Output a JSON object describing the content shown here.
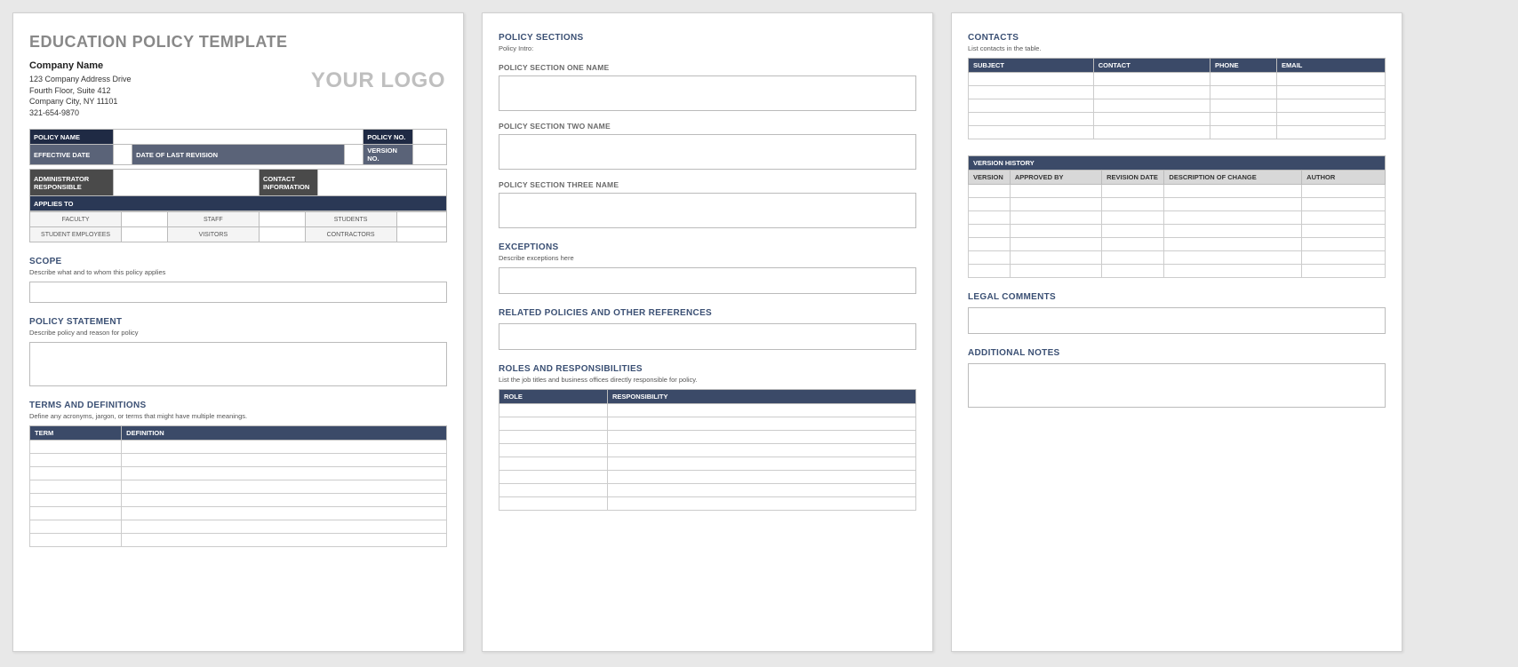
{
  "colors": {
    "page_bg": "#ffffff",
    "body_bg": "#e8e8e8",
    "title_gray": "#888888",
    "heading_navy": "#3b5074",
    "header_dark": "#1f2a44",
    "header_slate": "#5a6378",
    "header_gray": "#4a4a4a",
    "header_navy": "#2a3855",
    "table_header": "#3b4a68",
    "table_header_lt": "#d8d8d8",
    "logo_gray": "#bfbfbf",
    "border": "#bbbbbb"
  },
  "page1": {
    "title": "EDUCATION POLICY TEMPLATE",
    "company": {
      "name": "Company Name",
      "line1": "123 Company Address Drive",
      "line2": "Fourth Floor, Suite 412",
      "line3": "Company City, NY  11101",
      "line4": "321-654-9870"
    },
    "logo": "YOUR LOGO",
    "meta": {
      "policy_name": "POLICY NAME",
      "policy_no": "POLICY NO.",
      "effective_date": "EFFECTIVE DATE",
      "date_last_rev": "DATE OF LAST REVISION",
      "version_no": "VERSION NO.",
      "admin_resp": "ADMINISTRATOR RESPONSIBLE",
      "contact_info": "CONTACT INFORMATION",
      "applies_to": "APPLIES TO"
    },
    "applies": {
      "r1c1": "FACULTY",
      "r1c2": "STAFF",
      "r1c3": "STUDENTS",
      "r2c1": "STUDENT EMPLOYEES",
      "r2c2": "VISITORS",
      "r2c3": "CONTRACTORS"
    },
    "scope": {
      "h": "SCOPE",
      "sub": "Describe what and to whom this policy applies"
    },
    "policy_stmt": {
      "h": "POLICY STATEMENT",
      "sub": "Describe policy and reason for policy"
    },
    "terms": {
      "h": "TERMS AND DEFINITIONS",
      "sub": "Define any acronyms, jargon, or terms that might have multiple meanings.",
      "cols": {
        "term": "TERM",
        "definition": "DEFINITION"
      },
      "row_count": 8
    }
  },
  "page2": {
    "policy_sections": {
      "h": "POLICY SECTIONS",
      "sub": "Policy Intro:"
    },
    "sec1": "POLICY SECTION ONE NAME",
    "sec2": "POLICY SECTION TWO NAME",
    "sec3": "POLICY SECTION THREE NAME",
    "exceptions": {
      "h": "EXCEPTIONS",
      "sub": "Describe exceptions here"
    },
    "related": {
      "h": "RELATED POLICIES AND OTHER REFERENCES"
    },
    "roles": {
      "h": "ROLES AND RESPONSIBILITIES",
      "sub": "List the job titles and business offices directly responsible for policy.",
      "cols": {
        "role": "ROLE",
        "resp": "RESPONSIBILITY"
      },
      "row_count": 8
    }
  },
  "page3": {
    "contacts": {
      "h": "CONTACTS",
      "sub": "List contacts in the table.",
      "cols": {
        "subject": "SUBJECT",
        "contact": "CONTACT",
        "phone": "PHONE",
        "email": "EMAIL"
      },
      "row_count": 5
    },
    "version_history": {
      "h": "VERSION HISTORY",
      "cols": {
        "version": "VERSION",
        "approved": "APPROVED BY",
        "revdate": "REVISION DATE",
        "desc": "DESCRIPTION OF CHANGE",
        "author": "AUTHOR"
      },
      "row_count": 7
    },
    "legal": {
      "h": "LEGAL COMMENTS"
    },
    "notes": {
      "h": "ADDITIONAL NOTES"
    }
  }
}
